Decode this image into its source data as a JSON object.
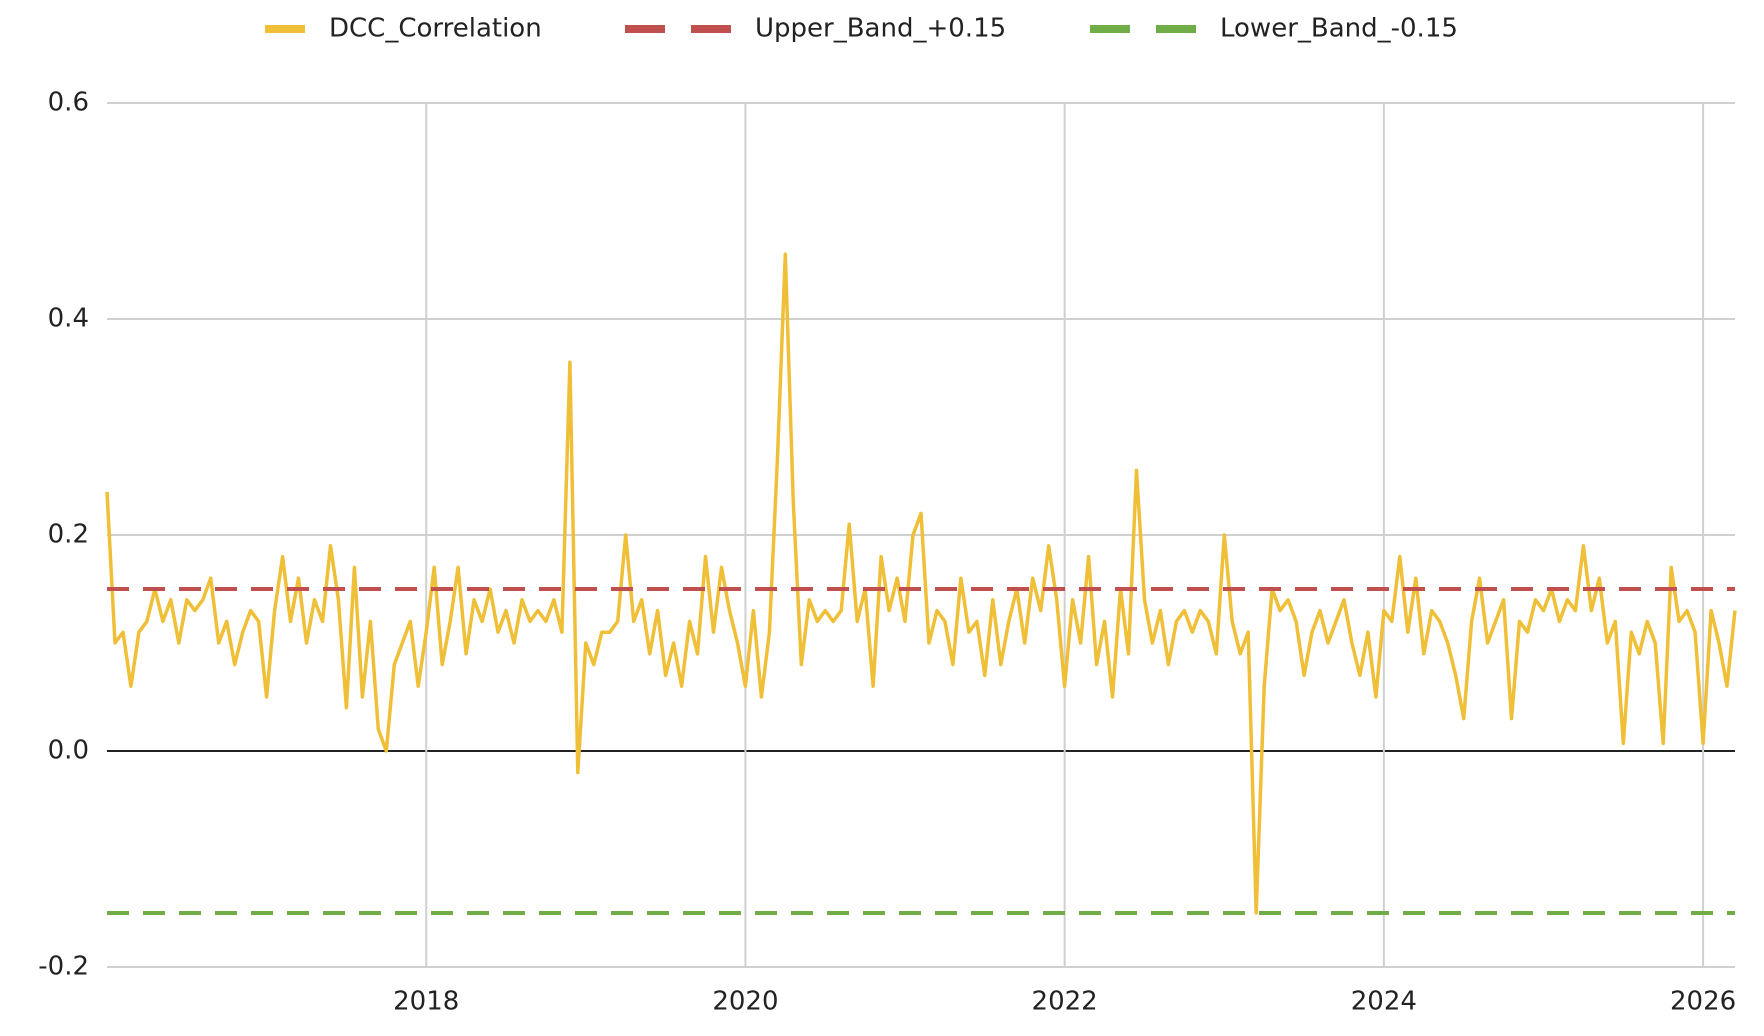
{
  "chart_data": {
    "type": "line",
    "series": [
      {
        "name": "DCC_Correlation",
        "color": "#f0bf38",
        "dashed": false,
        "x": [
          2016,
          2016.05,
          2016.1,
          2016.15,
          2016.2,
          2016.25,
          2016.3,
          2016.35,
          2016.4,
          2016.45,
          2016.5,
          2016.55,
          2016.6,
          2016.65,
          2016.7,
          2016.75,
          2016.8,
          2016.85,
          2016.9,
          2016.95,
          2017,
          2017.05,
          2017.1,
          2017.15,
          2017.2,
          2017.25,
          2017.3,
          2017.35,
          2017.4,
          2017.45,
          2017.5,
          2017.55,
          2017.6,
          2017.65,
          2017.7,
          2017.75,
          2017.8,
          2017.85,
          2017.9,
          2017.95,
          2018,
          2018.05,
          2018.1,
          2018.15,
          2018.2,
          2018.25,
          2018.3,
          2018.35,
          2018.4,
          2018.45,
          2018.5,
          2018.55,
          2018.6,
          2018.65,
          2018.7,
          2018.75,
          2018.8,
          2018.85,
          2018.9,
          2018.95,
          2019,
          2019.05,
          2019.1,
          2019.15,
          2019.2,
          2019.25,
          2019.3,
          2019.35,
          2019.4,
          2019.45,
          2019.5,
          2019.55,
          2019.6,
          2019.65,
          2019.7,
          2019.75,
          2019.8,
          2019.85,
          2019.9,
          2019.95,
          2020,
          2020.05,
          2020.1,
          2020.15,
          2020.2,
          2020.25,
          2020.3,
          2020.35,
          2020.4,
          2020.45,
          2020.5,
          2020.55,
          2020.6,
          2020.65,
          2020.7,
          2020.75,
          2020.8,
          2020.85,
          2020.9,
          2020.95,
          2021,
          2021.05,
          2021.1,
          2021.15,
          2021.2,
          2021.25,
          2021.3,
          2021.35,
          2021.4,
          2021.45,
          2021.5,
          2021.55,
          2021.6,
          2021.65,
          2021.7,
          2021.75,
          2021.8,
          2021.85,
          2021.9,
          2021.95,
          2022,
          2022.05,
          2022.1,
          2022.15,
          2022.2,
          2022.25,
          2022.3,
          2022.35,
          2022.4,
          2022.45,
          2022.5,
          2022.55,
          2022.6,
          2022.65,
          2022.7,
          2022.75,
          2022.8,
          2022.85,
          2022.9,
          2022.95,
          2023,
          2023.05,
          2023.1,
          2023.15,
          2023.2,
          2023.25,
          2023.3,
          2023.35,
          2023.4,
          2023.45,
          2023.5,
          2023.55,
          2023.6,
          2023.65,
          2023.7,
          2023.75,
          2023.8,
          2023.85,
          2023.9,
          2023.95,
          2024,
          2024.05,
          2024.1,
          2024.15,
          2024.2,
          2024.25,
          2024.3,
          2024.35,
          2024.4,
          2024.45,
          2024.5,
          2024.55,
          2024.6,
          2024.65,
          2024.7,
          2024.75,
          2024.8,
          2024.85,
          2024.9,
          2024.95,
          2025,
          2025.05,
          2025.1,
          2025.15,
          2025.2,
          2025.25,
          2025.3,
          2025.35,
          2025.4,
          2025.45,
          2025.5,
          2025.55,
          2025.6,
          2025.65,
          2025.7,
          2025.75,
          2025.8,
          2025.85,
          2025.9,
          2025.95,
          2026,
          2026.05,
          2026.1,
          2026.15,
          2026.2
        ],
        "values": [
          0.24,
          0.1,
          0.11,
          0.06,
          0.11,
          0.12,
          0.15,
          0.12,
          0.14,
          0.1,
          0.14,
          0.13,
          0.14,
          0.16,
          0.1,
          0.12,
          0.08,
          0.11,
          0.13,
          0.12,
          0.05,
          0.13,
          0.18,
          0.12,
          0.16,
          0.1,
          0.14,
          0.12,
          0.19,
          0.14,
          0.04,
          0.17,
          0.05,
          0.12,
          0.02,
          0.0,
          0.08,
          0.1,
          0.12,
          0.06,
          0.11,
          0.17,
          0.08,
          0.12,
          0.17,
          0.09,
          0.14,
          0.12,
          0.15,
          0.11,
          0.13,
          0.1,
          0.14,
          0.12,
          0.13,
          0.12,
          0.14,
          0.11,
          0.36,
          -0.02,
          0.1,
          0.08,
          0.11,
          0.11,
          0.12,
          0.2,
          0.12,
          0.14,
          0.09,
          0.13,
          0.07,
          0.1,
          0.06,
          0.12,
          0.09,
          0.18,
          0.11,
          0.17,
          0.13,
          0.1,
          0.06,
          0.13,
          0.05,
          0.11,
          0.27,
          0.46,
          0.23,
          0.08,
          0.14,
          0.12,
          0.13,
          0.12,
          0.13,
          0.21,
          0.12,
          0.15,
          0.06,
          0.18,
          0.13,
          0.16,
          0.12,
          0.2,
          0.22,
          0.1,
          0.13,
          0.12,
          0.08,
          0.16,
          0.11,
          0.12,
          0.07,
          0.14,
          0.08,
          0.12,
          0.15,
          0.1,
          0.16,
          0.13,
          0.19,
          0.14,
          0.06,
          0.14,
          0.1,
          0.18,
          0.08,
          0.12,
          0.05,
          0.15,
          0.09,
          0.26,
          0.14,
          0.1,
          0.13,
          0.08,
          0.12,
          0.13,
          0.11,
          0.13,
          0.12,
          0.09,
          0.2,
          0.12,
          0.09,
          0.11,
          -0.15,
          0.06,
          0.15,
          0.13,
          0.14,
          0.12,
          0.07,
          0.11,
          0.13,
          0.1,
          0.12,
          0.14,
          0.1,
          0.07,
          0.11,
          0.05,
          0.13,
          0.12,
          0.18,
          0.11,
          0.16,
          0.09,
          0.13,
          0.12,
          0.1,
          0.07,
          0.03,
          0.12,
          0.16,
          0.1,
          0.12,
          0.14,
          0.03,
          0.12,
          0.11,
          0.14,
          0.13,
          0.15,
          0.12,
          0.14,
          0.13,
          0.19,
          0.13,
          0.16,
          0.1,
          0.12,
          0.007,
          0.11,
          0.09,
          0.12,
          0.1,
          0.007,
          0.17,
          0.12,
          0.13,
          0.11,
          0.007,
          0.13,
          0.1,
          0.06,
          0.13
        ]
      },
      {
        "name": "Upper_Band_+0.15",
        "color": "#c0504d",
        "dashed": true,
        "x": [
          2016,
          2026.2
        ],
        "values": [
          0.15,
          0.15
        ]
      },
      {
        "name": "Lower_Band_-0.15",
        "color": "#70ad47",
        "dashed": true,
        "x": [
          2016,
          2026.2
        ],
        "values": [
          -0.15,
          -0.15
        ]
      }
    ],
    "xlim": [
      2016,
      2026.2
    ],
    "xticks": [
      2018,
      2020,
      2022,
      2024,
      2026
    ],
    "ylim": [
      -0.2,
      0.6
    ],
    "yticks": [
      -0.2,
      {
        "value": 0,
        "label": "0.0"
      },
      0.2,
      0.4,
      0.6
    ],
    "grid": true,
    "legend": "top"
  }
}
